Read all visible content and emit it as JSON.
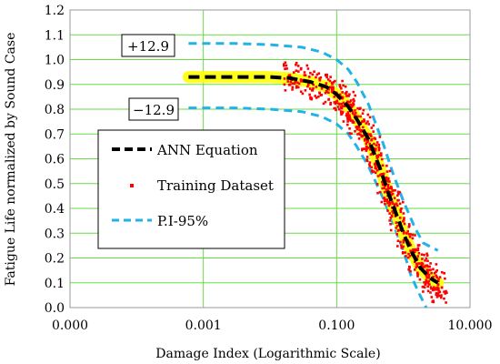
{
  "chart_data": {
    "type": "scatter",
    "title": "",
    "xlabel": "Damage Index (Logarithmic Scale)",
    "ylabel": "Fatigue Life normalized by Sound Case",
    "x_scale": "log",
    "xlim": [
      1e-05,
      10
    ],
    "ylim": [
      0,
      1.2
    ],
    "x_ticks": [
      {
        "value": 1e-05,
        "label": "0.000"
      },
      {
        "value": 0.001,
        "label": "0.001"
      },
      {
        "value": 0.1,
        "label": "0.100"
      },
      {
        "value": 10,
        "label": "10.000"
      }
    ],
    "y_ticks": [
      "0.0",
      "0.1",
      "0.2",
      "0.3",
      "0.4",
      "0.5",
      "0.6",
      "0.7",
      "0.8",
      "0.9",
      "1.0",
      "1.1",
      "1.2"
    ],
    "grid": true,
    "grid_color": "#66dd44",
    "legend_position": "center-left",
    "series": [
      {
        "name": "ANN Equation",
        "kind": "line",
        "color": "#000000",
        "highlight_color": "#ffff00",
        "x": [
          0.0006,
          0.001,
          0.003,
          0.01,
          0.02,
          0.04,
          0.07,
          0.1,
          0.15,
          0.2,
          0.3,
          0.45,
          0.6,
          0.8,
          1.0,
          1.3,
          1.8,
          2.5,
          3.3
        ],
        "y": [
          0.93,
          0.93,
          0.93,
          0.93,
          0.925,
          0.91,
          0.89,
          0.86,
          0.81,
          0.76,
          0.68,
          0.56,
          0.46,
          0.37,
          0.3,
          0.23,
          0.16,
          0.12,
          0.1
        ]
      },
      {
        "name": "Training Dataset",
        "kind": "scatter",
        "color": "#ff0000",
        "x": [
          0.02,
          0.03,
          0.05,
          0.07,
          0.1,
          0.12,
          0.15,
          0.18,
          0.2,
          0.25,
          0.3,
          0.35,
          0.4,
          0.5,
          0.6,
          0.7,
          0.8,
          1.0,
          1.2,
          1.5,
          2.0,
          2.5,
          3.0,
          3.5
        ],
        "y": [
          0.93,
          0.92,
          0.9,
          0.88,
          0.86,
          0.84,
          0.81,
          0.78,
          0.76,
          0.72,
          0.68,
          0.63,
          0.59,
          0.52,
          0.46,
          0.42,
          0.37,
          0.3,
          0.26,
          0.2,
          0.16,
          0.12,
          0.1,
          0.08
        ]
      },
      {
        "name": "P.I-95%",
        "kind": "line",
        "dashed": true,
        "color": "#22b2e8",
        "bands": [
          {
            "label": "+12.9",
            "x": [
              0.0006,
              0.003,
              0.01,
              0.03,
              0.06,
              0.1,
              0.15,
              0.2,
              0.3,
              0.5,
              0.7,
              1.0,
              1.5,
              2.0,
              3.3
            ],
            "y": [
              1.065,
              1.065,
              1.06,
              1.05,
              1.03,
              1.0,
              0.96,
              0.91,
              0.82,
              0.66,
              0.54,
              0.43,
              0.32,
              0.26,
              0.23
            ]
          },
          {
            "label": "−12.9",
            "x": [
              0.0006,
              0.003,
              0.01,
              0.03,
              0.06,
              0.1,
              0.15,
              0.2,
              0.3,
              0.5,
              0.7,
              1.0,
              1.3,
              1.7,
              2.2
            ],
            "y": [
              0.805,
              0.805,
              0.8,
              0.79,
              0.77,
              0.74,
              0.7,
              0.65,
              0.57,
              0.44,
              0.34,
              0.23,
              0.13,
              0.06,
              0.0
            ]
          }
        ]
      }
    ]
  }
}
